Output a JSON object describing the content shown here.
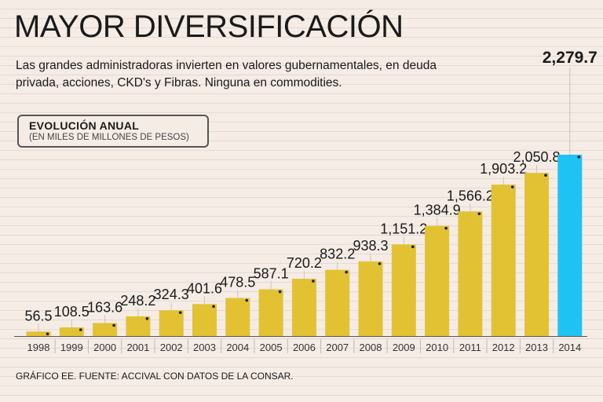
{
  "header": {
    "title": "MAYOR DIVERSIFICACIÓN",
    "subtitle": "Las grandes administradoras invierten en valores gubernamentales, en deuda privada, acciones, CKD's y Fibras. Ninguna en commodities."
  },
  "unit_box": {
    "title": "EVOLUCIÓN ANUAL",
    "subtitle": "(EN MILES DE MILLONES DE PESOS)"
  },
  "footer": {
    "source": "GRÁFICO EE. FUENTE:  ACCIVAL CON DATOS DE LA CONSAR."
  },
  "colors": {
    "bar": "#e2c232",
    "highlight_bar": "#1ec3f3",
    "background": "#f5ece6",
    "text": "#1a1a1a"
  },
  "chart_data": {
    "type": "bar",
    "title": "EVOLUCIÓN ANUAL",
    "ylabel": "(EN MILES DE MILLONES DE PESOS)",
    "xlabel": "",
    "categories": [
      "1998",
      "1999",
      "2000",
      "2001",
      "2002",
      "2003",
      "2004",
      "2005",
      "2006",
      "2007",
      "2008",
      "2009",
      "2010",
      "2011",
      "2012",
      "2013",
      "2014"
    ],
    "values": [
      56.5,
      108.5,
      163.6,
      248.2,
      324.3,
      401.6,
      478.5,
      587.1,
      720.2,
      832.2,
      938.3,
      1151.2,
      1384.9,
      1566.2,
      1903.2,
      2050.8,
      2279.7
    ],
    "value_labels": [
      "56.5",
      "108.5",
      "163.6",
      "248.2",
      "324.3",
      "401.6",
      "478.5",
      "587.1",
      "720.2",
      "832.2",
      "938.3",
      "1,151.2",
      "1,384.9",
      "1,566.2",
      "1,903.2",
      "2,050.8",
      "2,279.7"
    ],
    "highlight_index": 16,
    "ylim": [
      0,
      2279.7
    ],
    "grid": false
  }
}
